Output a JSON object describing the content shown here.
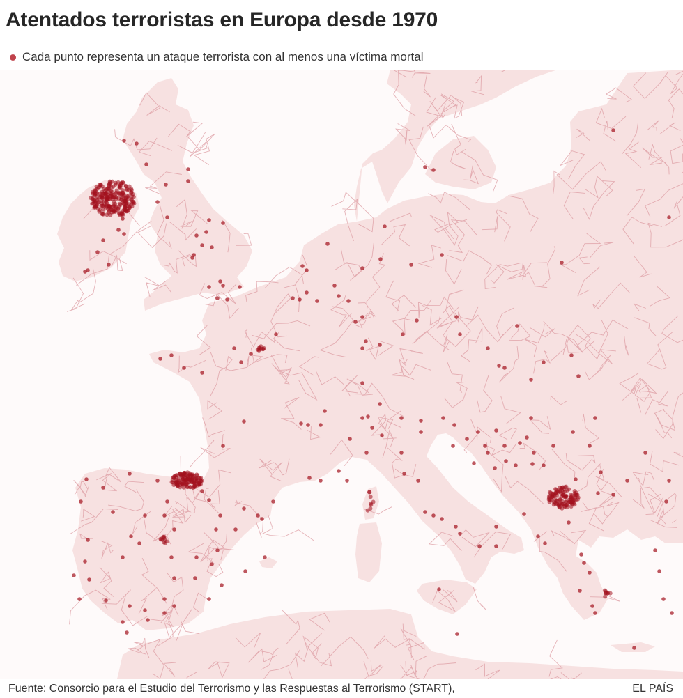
{
  "title": "Atentados terroristas en Europa desde 1970",
  "legend": {
    "label": "Cada punto representa un ataque terrorista con al menos una víctima mortal",
    "dot_color": "#c0434c"
  },
  "footer": {
    "source": "Fuente:  Consorcio para el Estudio del Terrorismo y las Respuestas al Terrorismo (START),",
    "brand": "EL PAÍS"
  },
  "colors": {
    "sea": "#fefafa",
    "land": "#f7e1e1",
    "border": "#dc9aa0",
    "attack": "#a3111d"
  },
  "map": {
    "region": "Europe",
    "hotspots": [
      "Northern Ireland",
      "Basque Country",
      "Kosovo"
    ]
  }
}
